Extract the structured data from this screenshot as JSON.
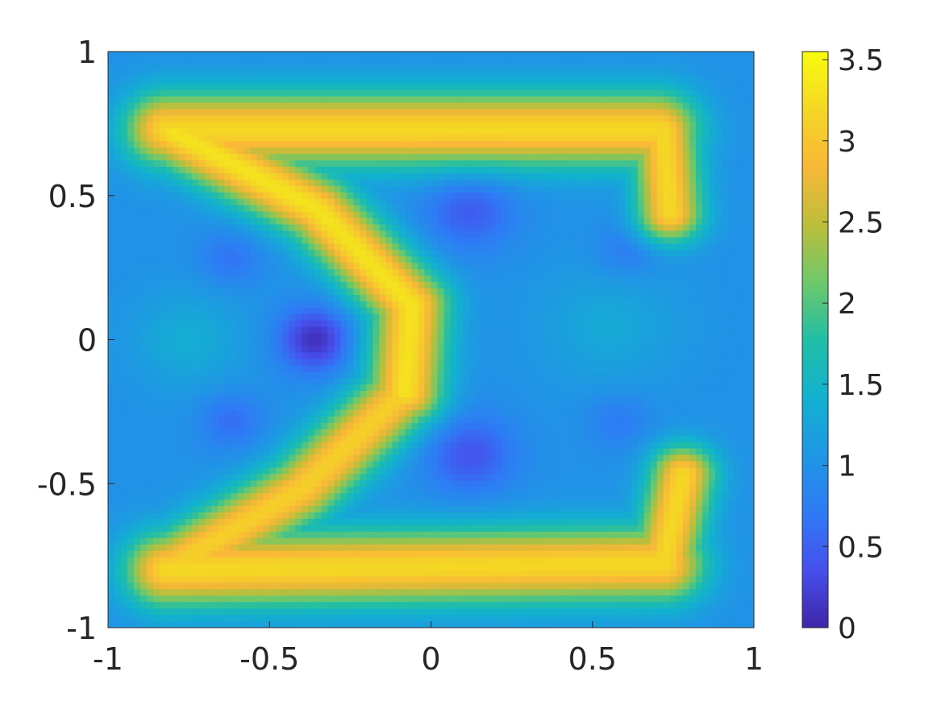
{
  "chart_data": {
    "type": "heatmap",
    "title": "",
    "xlabel": "",
    "ylabel": "",
    "xlim": [
      -1,
      1
    ],
    "ylim": [
      -1,
      1
    ],
    "x_ticks": [
      -1,
      -0.5,
      0,
      0.5,
      1
    ],
    "x_tick_labels": [
      "-1",
      "-0.5",
      "0",
      "0.5",
      "1"
    ],
    "y_ticks": [
      -1,
      -0.5,
      0,
      0.5,
      1
    ],
    "y_tick_labels": [
      "-1",
      "-0.5",
      "0",
      "0.5",
      "1"
    ],
    "colormap": "parula",
    "color_range": [
      0,
      3.55
    ],
    "colorbar_ticks": [
      0,
      0.5,
      1,
      1.5,
      2,
      2.5,
      3,
      3.5
    ],
    "colorbar_tick_labels": [
      "0",
      "0.5",
      "1",
      "1.5",
      "2",
      "2.5",
      "3",
      "3.5"
    ],
    "background_value": 1.0,
    "features": [
      {
        "kind": "segment",
        "from": [
          -0.82,
          0.73
        ],
        "to": [
          0.7,
          0.73
        ],
        "value": 3.2,
        "width": 0.09
      },
      {
        "kind": "segment",
        "from": [
          0.72,
          0.73
        ],
        "to": [
          0.74,
          0.44
        ],
        "value": 3.2,
        "width": 0.07
      },
      {
        "kind": "segment",
        "from": [
          -0.8,
          0.72
        ],
        "to": [
          -0.35,
          0.45
        ],
        "value": 3.3,
        "width": 0.08
      },
      {
        "kind": "segment",
        "from": [
          -0.35,
          0.45
        ],
        "to": [
          -0.06,
          0.12
        ],
        "value": 3.3,
        "width": 0.08
      },
      {
        "kind": "segment",
        "from": [
          -0.06,
          0.12
        ],
        "to": [
          -0.08,
          -0.18
        ],
        "value": 3.3,
        "width": 0.08
      },
      {
        "kind": "segment",
        "from": [
          -0.08,
          -0.18
        ],
        "to": [
          -0.4,
          -0.52
        ],
        "value": 3.1,
        "width": 0.08
      },
      {
        "kind": "segment",
        "from": [
          -0.4,
          -0.52
        ],
        "to": [
          -0.82,
          -0.8
        ],
        "value": 3.1,
        "width": 0.08
      },
      {
        "kind": "segment",
        "from": [
          -0.82,
          -0.8
        ],
        "to": [
          0.72,
          -0.78
        ],
        "value": 3.2,
        "width": 0.09
      },
      {
        "kind": "segment",
        "from": [
          0.72,
          -0.78
        ],
        "to": [
          0.78,
          -0.47
        ],
        "value": 3.2,
        "width": 0.07
      },
      {
        "kind": "spot",
        "center": [
          -0.36,
          0.0
        ],
        "value": 0.1,
        "radius": 0.08
      },
      {
        "kind": "spot",
        "center": [
          0.12,
          -0.4
        ],
        "value": 0.4,
        "radius": 0.1
      },
      {
        "kind": "spot",
        "center": [
          0.12,
          0.45
        ],
        "value": 0.45,
        "radius": 0.1
      },
      {
        "kind": "spot",
        "center": [
          -0.62,
          -0.28
        ],
        "value": 0.6,
        "radius": 0.07
      },
      {
        "kind": "spot",
        "center": [
          -0.62,
          0.28
        ],
        "value": 0.65,
        "radius": 0.07
      },
      {
        "kind": "spot",
        "center": [
          0.58,
          -0.28
        ],
        "value": 0.7,
        "radius": 0.07
      },
      {
        "kind": "spot",
        "center": [
          0.6,
          0.3
        ],
        "value": 0.7,
        "radius": 0.07
      },
      {
        "kind": "spot",
        "center": [
          -0.75,
          0.0
        ],
        "value": 1.35,
        "radius": 0.12
      },
      {
        "kind": "spot",
        "center": [
          0.55,
          0.05
        ],
        "value": 1.3,
        "radius": 0.15
      }
    ]
  }
}
